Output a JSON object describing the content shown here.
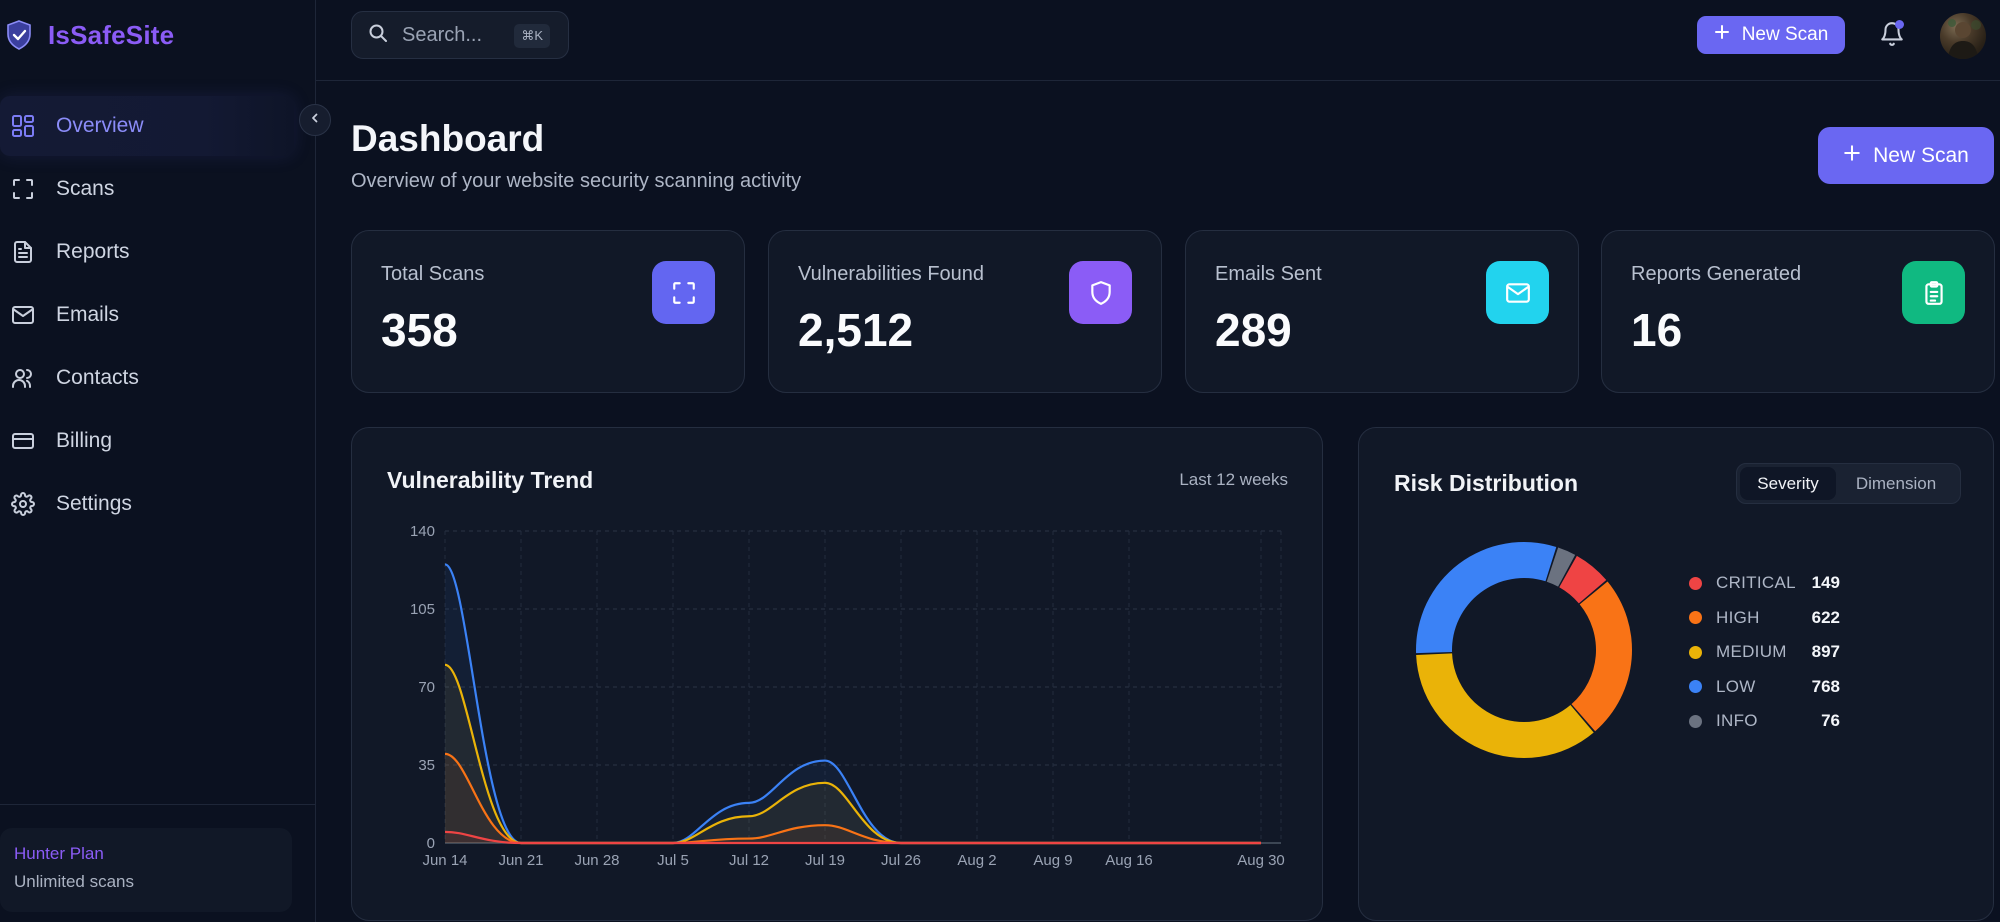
{
  "brand": {
    "name": "IsSafeSite"
  },
  "sidebar": {
    "items": [
      {
        "label": "Overview",
        "icon": "grid-icon",
        "active": true
      },
      {
        "label": "Scans",
        "icon": "scan-icon",
        "active": false
      },
      {
        "label": "Reports",
        "icon": "file-icon",
        "active": false
      },
      {
        "label": "Emails",
        "icon": "mail-icon",
        "active": false
      },
      {
        "label": "Contacts",
        "icon": "users-icon",
        "active": false
      },
      {
        "label": "Billing",
        "icon": "credit-card-icon",
        "active": false
      },
      {
        "label": "Settings",
        "icon": "gear-icon",
        "active": false
      }
    ],
    "plan": {
      "name": "Hunter Plan",
      "description": "Unlimited scans"
    }
  },
  "topbar": {
    "search_placeholder": "Search...",
    "search_shortcut": "⌘K",
    "new_scan_label": "New Scan",
    "notification_dot": true
  },
  "header": {
    "title": "Dashboard",
    "subtitle": "Overview of your website security scanning activity",
    "new_scan_label": "New Scan"
  },
  "stats": [
    {
      "label": "Total Scans",
      "value": "358",
      "icon": "scan-icon",
      "color": "#6366f1"
    },
    {
      "label": "Vulnerabilities Found",
      "value": "2,512",
      "icon": "shield-icon",
      "color": "#8b5cf6"
    },
    {
      "label": "Emails Sent",
      "value": "289",
      "icon": "mail-icon",
      "color": "#22d3ee"
    },
    {
      "label": "Reports Generated",
      "value": "16",
      "icon": "clipboard-icon",
      "color": "#10b981"
    }
  ],
  "trend": {
    "title": "Vulnerability Trend",
    "period": "Last 12 weeks"
  },
  "risk": {
    "title": "Risk Distribution",
    "toggle": {
      "active": "Severity",
      "inactive": "Dimension"
    }
  },
  "chart_data": [
    {
      "type": "area",
      "title": "Vulnerability Trend",
      "x": [
        "Jun 14",
        "Jun 21",
        "Jun 28",
        "Jul 5",
        "Jul 12",
        "Jul 19",
        "Jul 26",
        "Aug 2",
        "Aug 9",
        "Aug 16",
        "Aug 30"
      ],
      "ylim": [
        0,
        140
      ],
      "yticks": [
        0,
        35,
        70,
        105,
        140
      ],
      "grid": true,
      "series": [
        {
          "key": "info",
          "values": [
            125,
            0,
            0,
            0,
            18,
            37,
            0,
            0,
            0,
            0,
            0
          ],
          "color": "#3b82f6"
        },
        {
          "key": "medium",
          "values": [
            80,
            0,
            0,
            0,
            12,
            27,
            0,
            0,
            0,
            0,
            0
          ],
          "color": "#eab308"
        },
        {
          "key": "high",
          "values": [
            40,
            0,
            0,
            0,
            2,
            8,
            0,
            0,
            0,
            0,
            0
          ],
          "color": "#f97316"
        },
        {
          "key": "critical",
          "values": [
            5,
            0,
            0,
            0,
            0,
            0,
            0,
            0,
            0,
            0,
            0
          ],
          "color": "#ef4444"
        }
      ]
    },
    {
      "type": "pie",
      "title": "Risk Distribution",
      "categories": [
        "CRITICAL",
        "HIGH",
        "MEDIUM",
        "LOW",
        "INFO"
      ],
      "values": [
        149,
        622,
        897,
        768,
        76
      ],
      "colors": [
        "#ef4444",
        "#f97316",
        "#eab308",
        "#3b82f6",
        "#6b7280"
      ],
      "legend": "right"
    }
  ]
}
